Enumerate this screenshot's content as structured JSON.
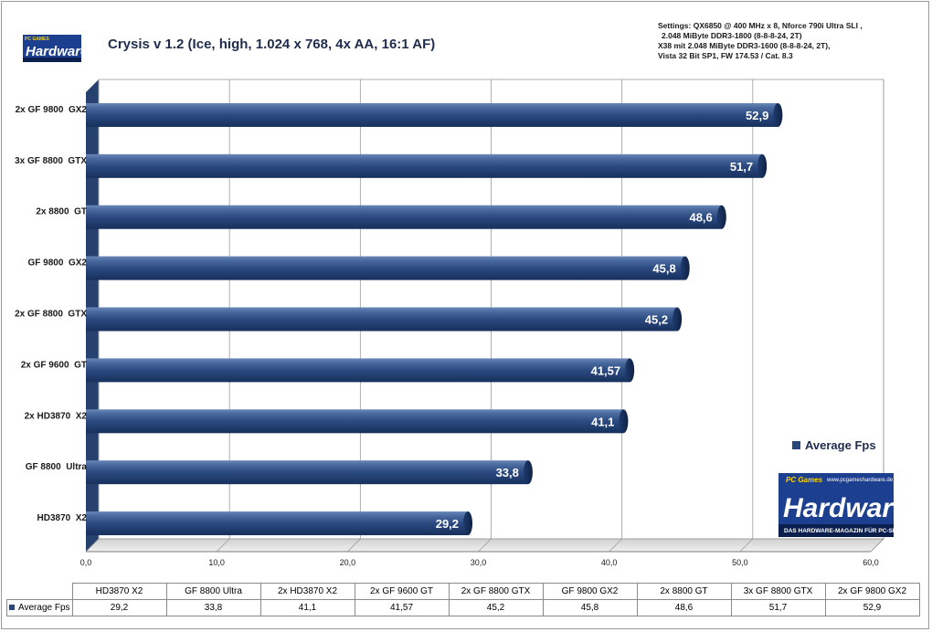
{
  "chart_data": {
    "type": "bar",
    "orientation": "horizontal",
    "title": "Crysis v 1.2 (Ice, high, 1.024 x 768, 4x AA, 16:1 AF)",
    "settings_lines": [
      "Settings: QX6850 @ 400 MHz x 8, Nforce 790i Ultra SLI ,",
      "2.048 MiByte DDR3-1800 (8-8-8-24, 2T)",
      "X38 mit 2.048 MiByte DDR3-1600 (8-8-8-24, 2T),",
      "Vista 32 Bit SP1, FW 174.53 / Cat. 8.3"
    ],
    "categories": [
      "2x GF 9800  GX2",
      "3x GF 8800  GTX",
      "2x 8800  GT",
      "GF 9800  GX2",
      "2x GF 8800  GTX",
      "2x GF 9600  GT",
      "2x HD3870  X2",
      "GF 8800  Ultra",
      "HD3870  X2"
    ],
    "series": [
      {
        "name": "Average Fps",
        "values": [
          52.9,
          51.7,
          48.6,
          45.8,
          45.2,
          41.57,
          41.1,
          33.8,
          29.2
        ],
        "labels": [
          "52,9",
          "51,7",
          "48,6",
          "45,8",
          "45,2",
          "41,57",
          "41,1",
          "33,8",
          "29,2"
        ]
      }
    ],
    "xlim": [
      0,
      60
    ],
    "x_ticks": [
      0,
      10,
      20,
      30,
      40,
      50,
      60
    ],
    "x_tick_labels": [
      "0,0",
      "10,0",
      "20,0",
      "30,0",
      "40,0",
      "50,0",
      "60,0"
    ],
    "grid": true,
    "legend": "right",
    "bar_color": "#29477b",
    "table": {
      "headers": [
        "HD3870 X2",
        "GF 8800 Ultra",
        "2x HD3870 X2",
        "2x GF 9600 GT",
        "2x GF 8800 GTX",
        "GF 9800 GX2",
        "2x 8800 GT",
        "3x GF 8800 GTX",
        "2x GF 9800 GX2"
      ],
      "row_label": "Average Fps",
      "values": [
        "29,2",
        "33,8",
        "41,1",
        "41,57",
        "45,2",
        "45,8",
        "48,6",
        "51,7",
        "52,9"
      ]
    }
  },
  "logo": {
    "top_small": "PC GAMES",
    "top_main": "Hardware",
    "bottom_url": "www.pcgameshardware.de",
    "bottom_main": "Hardware",
    "bottom_tagline": "DAS HARDWARE-MAGAZIN FÜR PC-SPIELER",
    "bottom_small": "PC Games",
    "brand_blue": "#1d3f8f"
  }
}
